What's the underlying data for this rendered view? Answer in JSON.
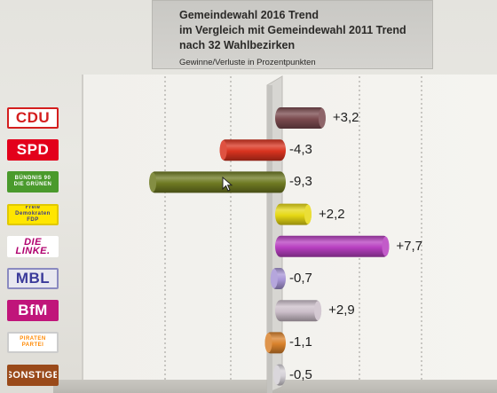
{
  "title": "Gemeindewahl 2016 Trend",
  "title_line2": "im Vergleich mit Gemeindewahl 2011 Trend",
  "title_line3": "nach 32 Wahlbezirken",
  "subtitle": "Gewinne/Verluste in Prozentpunkten",
  "chart_data": {
    "type": "bar",
    "orientation": "horizontal",
    "title": "Gemeindewahl 2016 Trend",
    "subtitle": "im Vergleich mit Gemeindewahl 2011 Trend nach 32 Wahlbezirken",
    "ylabel": "Gewinne/Verluste in Prozentpunkten",
    "categories": [
      "CDU",
      "SPD",
      "BÜNDNIS 90 DIE GRÜNEN",
      "Freie Demokraten FDP",
      "DIE LINKE.",
      "MBL",
      "BfM",
      "PIRATEN PARTEI",
      "SONSTIGE"
    ],
    "values": [
      3.2,
      -4.3,
      -9.3,
      2.2,
      7.7,
      -0.7,
      2.9,
      -1.1,
      -0.5
    ],
    "value_labels": [
      "+3,2",
      "-4,3",
      "-9,3",
      "+2,2",
      "+7,7",
      "-0,7",
      "+2,9",
      "-1,1",
      "-0,5"
    ],
    "colors": [
      "#7a4a4e",
      "#d9331f",
      "#6e7a22",
      "#e6d814",
      "#b73fc0",
      "#a896d6",
      "#ccbfca",
      "#d9822c",
      "#d4d0d6"
    ],
    "xlim": [
      -12,
      12
    ],
    "grid": true
  },
  "logos": [
    {
      "text": "CDU",
      "bg": "#ffffff",
      "fg": "#d41e1e",
      "border": "#d41e1e"
    },
    {
      "text": "SPD",
      "bg": "#e3001b",
      "fg": "#ffffff",
      "border": "#e3001b"
    },
    {
      "text": "BÜNDNIS 90 DIE GRÜNEN",
      "bg": "#4a9a2c",
      "fg": "#ffffff",
      "border": "#4a9a2c"
    },
    {
      "text": "Freie Demokraten FDP",
      "bg": "#ffe600",
      "fg": "#3a3a8c",
      "border": "#e0c800"
    },
    {
      "text": "DIE LINKE.",
      "bg": "#ffffff",
      "fg": "#b0006e",
      "border": "#ffffff"
    },
    {
      "text": "MBL",
      "bg": "#e8e8f0",
      "fg": "#3a3a9a",
      "border": "#8a8ac0"
    },
    {
      "text": "BfM",
      "bg": "#c0157a",
      "fg": "#ffffff",
      "border": "#c0157a"
    },
    {
      "text": "PIRATEN PARTEI",
      "bg": "#ffffff",
      "fg": "#ff8800",
      "border": "#cccccc"
    },
    {
      "text": "SONSTIGE",
      "bg": "#9a4a1a",
      "fg": "#ffffff",
      "border": "#9a4a1a"
    }
  ]
}
